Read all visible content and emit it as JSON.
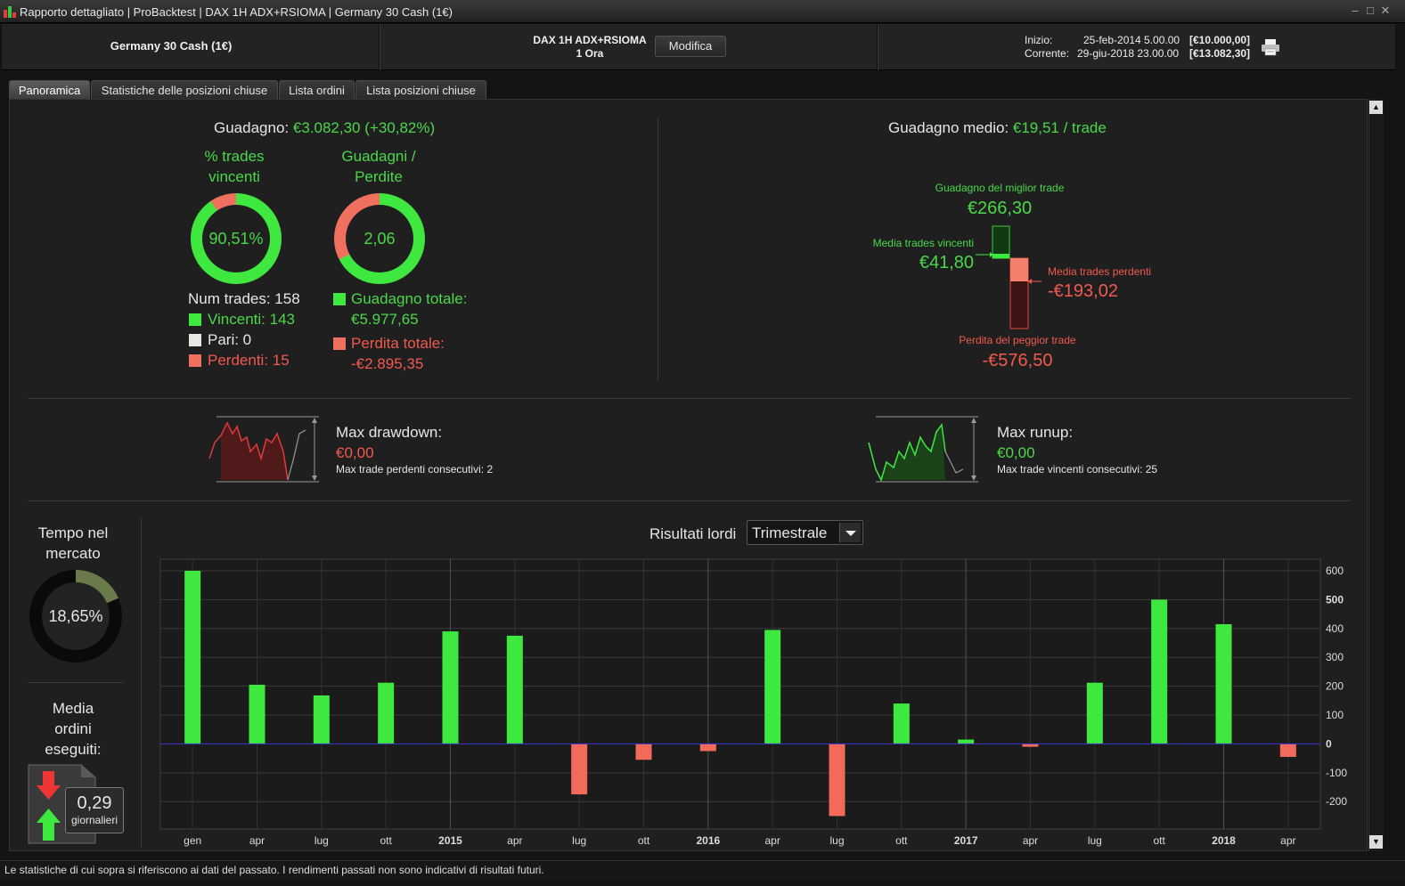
{
  "window": {
    "title": "Rapporto dettagliato | ProBacktest | DAX 1H ADX+RSIOMA | Germany 30 Cash (1€)",
    "controls": [
      "–",
      "□",
      "✕"
    ]
  },
  "header": {
    "instrument": "Germany 30 Cash (1€)",
    "strategy_name": "DAX 1H ADX+RSIOMA",
    "timeframe": "1 Ora",
    "modify_label": "Modifica",
    "start_label": "Inizio:",
    "start_date": "25-feb-2014 5.00.00",
    "start_capital": "[€10.000,00]",
    "current_label": "Corrente:",
    "current_date": "29-giu-2018 23.00.00",
    "current_capital": "[€13.082,30]"
  },
  "tabs": [
    {
      "label": "Panoramica",
      "active": true
    },
    {
      "label": "Statistiche delle posizioni chiuse",
      "active": false
    },
    {
      "label": "Lista ordini",
      "active": false
    },
    {
      "label": "Lista posizioni chiuse",
      "active": false
    }
  ],
  "overview": {
    "gain_label": "Guadagno:",
    "gain_value": "€3.082,30 (+30,82%)",
    "win_pct_title_1": "% trades",
    "win_pct_title_2": "vincenti",
    "win_pct_value": "90,51%",
    "win_ratio": 0.9051,
    "gl_title_1": "Guadagni /",
    "gl_title_2": "Perdite",
    "gl_value": "2,06",
    "gl_ratio": 0.674,
    "num_trades": "Num trades: 158",
    "winners": "Vincenti: 143",
    "even": "Pari: 0",
    "losers": "Perdenti: 15",
    "total_gain_label": "Guadagno totale:",
    "total_gain_value": "€5.977,65",
    "total_loss_label": "Perdita totale:",
    "total_loss_value": "-€2.895,35"
  },
  "average": {
    "label": "Guadagno medio:",
    "value": "€19,51 / trade",
    "best_label": "Guadagno del miglior trade",
    "best_value": "€266,30",
    "avg_win_label": "Media trades vincenti",
    "avg_win_value": "€41,80",
    "avg_loss_label": "Media trades perdenti",
    "avg_loss_value": "-€193,02",
    "worst_label": "Perdita del peggior trade",
    "worst_value": "-€576,50"
  },
  "drawdown": {
    "label": "Max drawdown:",
    "value": "€0,00",
    "consec_label": "Max trade perdenti consecutivi:",
    "consec_value": "2"
  },
  "runup": {
    "label": "Max runup:",
    "value": "€0,00",
    "consec_label": "Max trade vincenti consecutivi:",
    "consec_value": "25"
  },
  "time_in_market": {
    "title_1": "Tempo nel",
    "title_2": "mercato",
    "value": "18,65%",
    "ratio": 0.1865
  },
  "avg_orders": {
    "title_1": "Media",
    "title_2": "ordini",
    "title_3": "eseguiti:",
    "value": "0,29",
    "unit": "giornalieri"
  },
  "chart_header": {
    "title": "Risultati lordi",
    "period": "Trimestrale"
  },
  "chart_data": {
    "type": "bar",
    "title": "Risultati lordi",
    "categories": [
      "gen",
      "apr",
      "lug",
      "ott",
      "2015",
      "apr",
      "lug",
      "ott",
      "2016",
      "apr",
      "lug",
      "ott",
      "2017",
      "apr",
      "lug",
      "ott",
      "2018",
      "apr"
    ],
    "values": [
      600,
      205,
      168,
      212,
      390,
      375,
      -175,
      -55,
      -25,
      395,
      -250,
      140,
      15,
      -10,
      212,
      500,
      415,
      -45
    ],
    "ylim": [
      -295,
      600
    ],
    "yticks": [
      600,
      500,
      400,
      300,
      200,
      100,
      0,
      -100,
      -200
    ],
    "bold_ticks": [
      500,
      0
    ],
    "bold_categories": [
      "2015",
      "2016",
      "2017",
      "2018"
    ],
    "colors": {
      "positive": "#3ee83e",
      "negative": "#f26a5a",
      "zero_line": "#3838d0"
    },
    "grid": true
  },
  "footer": {
    "disclaimer": "Le statistiche di cui sopra si riferiscono ai dati del passato. I rendimenti passati non sono indicativi di risultati futuri."
  }
}
